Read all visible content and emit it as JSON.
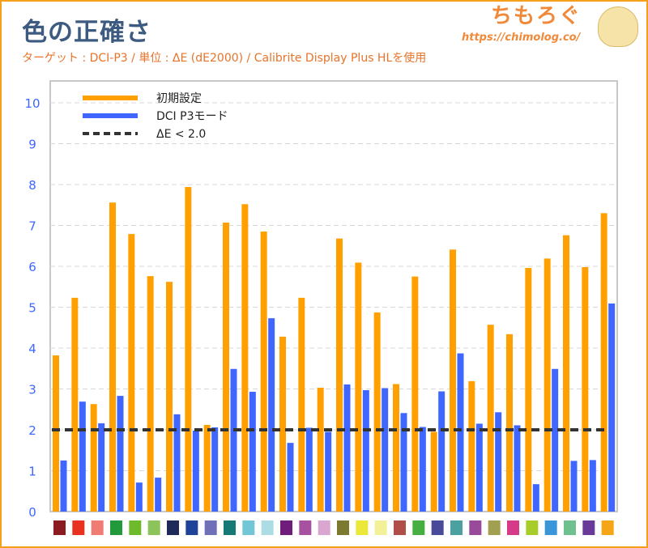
{
  "header": {
    "title": "色の正確さ",
    "subtitle": "ターゲット : DCI-P3 / 単位 : ΔE (dE2000) / Calibrite Display Plus HLを使用",
    "logo": "ちもろぐ",
    "url": "https://chimolog.co/"
  },
  "chart_data": {
    "type": "bar",
    "title": "色の正確さ",
    "ylabel": "ΔE (dE2000)",
    "xlabel": "",
    "ylim": [
      0,
      10
    ],
    "yticks": [
      "0",
      "1",
      "2",
      "3",
      "4",
      "5",
      "6",
      "7",
      "8",
      "9",
      "10"
    ],
    "grid": true,
    "legend_position": "top-left",
    "categories": [
      "#8b1c22",
      "#e8311f",
      "#ef7b73",
      "#229a3c",
      "#6fba2c",
      "#8cc35a",
      "#1e2a5a",
      "#1e449a",
      "#7070b8",
      "#157a75",
      "#73c6d5",
      "#acdde5",
      "#6f1c7a",
      "#a652a0",
      "#d9a6cf",
      "#7b7a30",
      "#ece83a",
      "#f3f09a",
      "#b04f4a",
      "#45b040",
      "#4a4a9a",
      "#4aa1a0",
      "#9a4a9a",
      "#a0a050",
      "#d83a8a",
      "#a8cc2a",
      "#3a96d8",
      "#6ec08e",
      "#6a3a9a",
      "#f5a516"
    ],
    "series": [
      {
        "name": "初期設定",
        "color": "#ffa000",
        "values": [
          3.82,
          5.23,
          2.63,
          7.56,
          6.79,
          5.76,
          5.62,
          7.94,
          2.12,
          7.07,
          7.52,
          6.85,
          4.28,
          5.23,
          3.03,
          6.68,
          6.09,
          4.87,
          3.12,
          5.75,
          1.95,
          6.41,
          3.19,
          4.57,
          4.34,
          5.96,
          6.19,
          6.76,
          5.98,
          7.3
        ]
      },
      {
        "name": "DCI P3モード",
        "color": "#3f66ff",
        "values": [
          1.25,
          2.69,
          2.16,
          2.83,
          0.71,
          0.83,
          2.38,
          1.98,
          2.06,
          3.49,
          2.93,
          4.73,
          1.68,
          2.05,
          1.95,
          3.11,
          2.97,
          3.02,
          2.41,
          2.07,
          2.94,
          3.87,
          2.15,
          2.43,
          2.11,
          0.67,
          3.49,
          1.24,
          1.26,
          5.09
        ]
      }
    ],
    "reference_line": {
      "name": "ΔE < 2.0",
      "value": 2.0,
      "color": "#333333"
    }
  }
}
